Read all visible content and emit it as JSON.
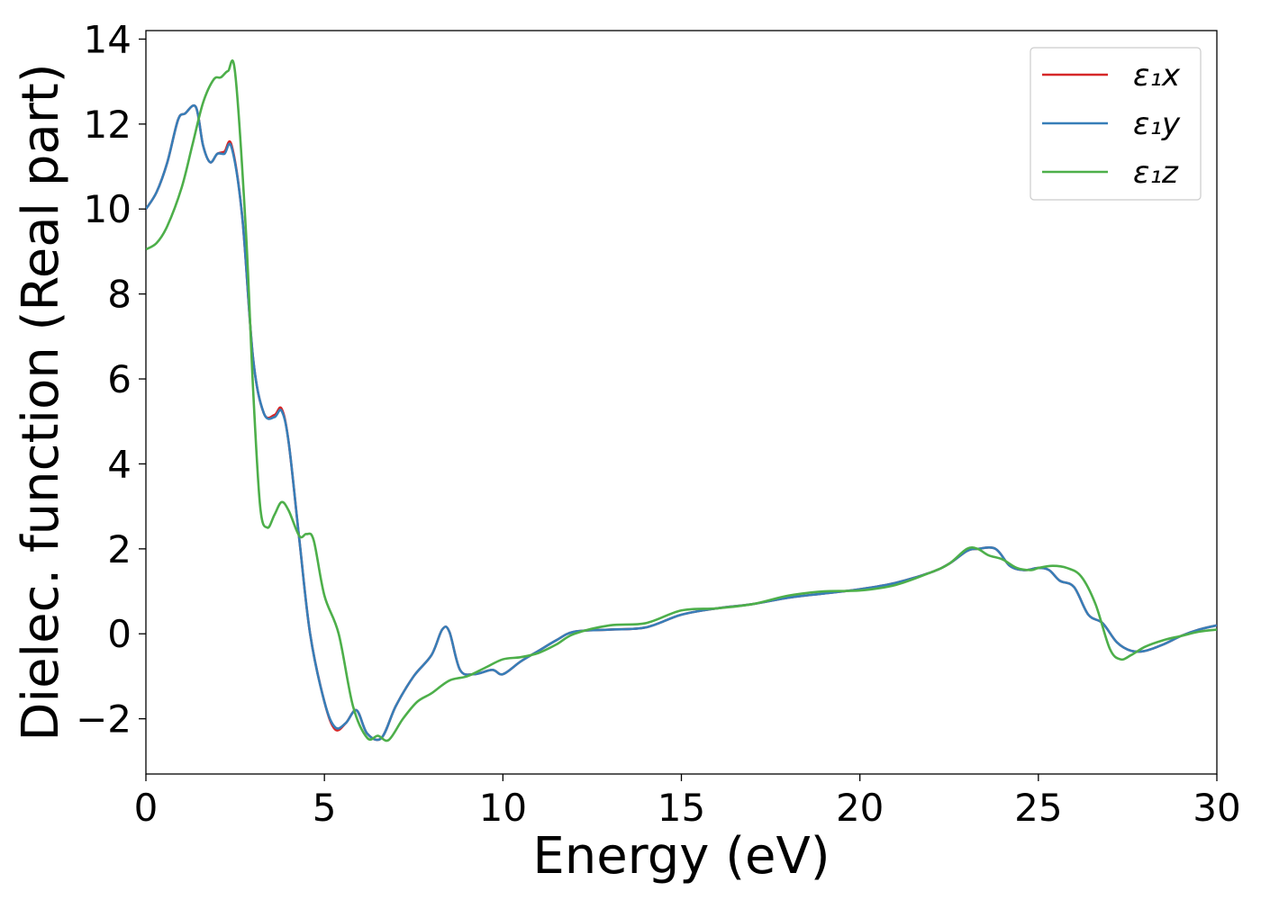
{
  "chart_data": {
    "type": "line",
    "title": "",
    "xlabel": "Energy (eV)",
    "ylabel": "Dielec. function (Real part)",
    "xlim": [
      0,
      30
    ],
    "ylim": [
      -3.3,
      14.2
    ],
    "xticks": [
      0,
      5,
      10,
      15,
      20,
      25,
      30
    ],
    "xtick_labels": [
      "0",
      "5",
      "10",
      "15",
      "20",
      "25",
      "30"
    ],
    "yticks": [
      -2,
      0,
      2,
      4,
      6,
      8,
      10,
      12,
      14
    ],
    "ytick_labels": [
      "−2",
      "0",
      "2",
      "4",
      "6",
      "8",
      "10",
      "12",
      "14"
    ],
    "grid": false,
    "legend_position": "top-right",
    "series": [
      {
        "name": "ε₁x",
        "color": "#d62728",
        "x": [
          0,
          0.3,
          0.6,
          0.9,
          1.1,
          1.4,
          1.6,
          1.8,
          2.0,
          2.2,
          2.4,
          2.7,
          3.0,
          3.3,
          3.6,
          3.8,
          4.0,
          4.3,
          4.6,
          5.0,
          5.3,
          5.6,
          5.9,
          6.2,
          6.6,
          7.0,
          7.5,
          8.0,
          8.3,
          8.5,
          8.8,
          9.2,
          9.7,
          10.0,
          10.5,
          11.0,
          11.5,
          12.0,
          13.0,
          14.0,
          15.0,
          16.0,
          17.0,
          18.0,
          19.0,
          20.0,
          21.0,
          22.0,
          22.5,
          23.0,
          23.3,
          23.8,
          24.2,
          24.6,
          25.0,
          25.3,
          25.6,
          26.0,
          26.4,
          26.8,
          27.2,
          27.6,
          28.0,
          28.5,
          29.0,
          29.5,
          30.0
        ],
        "y": [
          10.0,
          10.4,
          11.1,
          12.1,
          12.25,
          12.4,
          11.5,
          11.1,
          11.3,
          11.35,
          11.5,
          9.8,
          6.5,
          5.2,
          5.15,
          5.3,
          4.5,
          2.2,
          0.0,
          -1.6,
          -2.25,
          -2.1,
          -1.8,
          -2.35,
          -2.45,
          -1.7,
          -1.0,
          -0.5,
          0.1,
          0.05,
          -0.85,
          -0.95,
          -0.85,
          -0.95,
          -0.65,
          -0.4,
          -0.15,
          0.05,
          0.1,
          0.15,
          0.45,
          0.6,
          0.7,
          0.85,
          0.95,
          1.05,
          1.2,
          1.45,
          1.65,
          1.95,
          2.0,
          2.0,
          1.6,
          1.5,
          1.55,
          1.5,
          1.25,
          1.1,
          0.45,
          0.25,
          -0.2,
          -0.4,
          -0.4,
          -0.25,
          -0.05,
          0.1,
          0.2
        ]
      },
      {
        "name": "ε₁y",
        "color": "#377eb8",
        "x": [
          0,
          0.3,
          0.6,
          0.9,
          1.1,
          1.4,
          1.6,
          1.8,
          2.0,
          2.2,
          2.4,
          2.7,
          3.0,
          3.3,
          3.6,
          3.8,
          4.0,
          4.3,
          4.6,
          5.0,
          5.3,
          5.6,
          5.9,
          6.2,
          6.6,
          7.0,
          7.5,
          8.0,
          8.3,
          8.5,
          8.8,
          9.2,
          9.7,
          10.0,
          10.5,
          11.0,
          11.5,
          12.0,
          13.0,
          14.0,
          15.0,
          16.0,
          17.0,
          18.0,
          19.0,
          20.0,
          21.0,
          22.0,
          22.5,
          23.0,
          23.3,
          23.8,
          24.2,
          24.6,
          25.0,
          25.3,
          25.6,
          26.0,
          26.4,
          26.8,
          27.2,
          27.6,
          28.0,
          28.5,
          29.0,
          29.5,
          30.0
        ],
        "y": [
          10.0,
          10.4,
          11.1,
          12.1,
          12.25,
          12.4,
          11.5,
          11.1,
          11.3,
          11.3,
          11.45,
          9.8,
          6.5,
          5.2,
          5.1,
          5.25,
          4.5,
          2.2,
          0.0,
          -1.6,
          -2.2,
          -2.1,
          -1.8,
          -2.35,
          -2.45,
          -1.7,
          -1.0,
          -0.5,
          0.1,
          0.05,
          -0.85,
          -0.95,
          -0.85,
          -0.95,
          -0.65,
          -0.4,
          -0.15,
          0.05,
          0.1,
          0.15,
          0.45,
          0.6,
          0.7,
          0.85,
          0.95,
          1.05,
          1.2,
          1.45,
          1.65,
          1.95,
          2.0,
          2.0,
          1.6,
          1.5,
          1.55,
          1.5,
          1.25,
          1.1,
          0.45,
          0.25,
          -0.2,
          -0.4,
          -0.4,
          -0.25,
          -0.05,
          0.1,
          0.2
        ]
      },
      {
        "name": "ε₁z",
        "color": "#4daf4a",
        "x": [
          0,
          0.3,
          0.6,
          1.0,
          1.3,
          1.6,
          1.9,
          2.1,
          2.3,
          2.5,
          2.8,
          3.0,
          3.2,
          3.4,
          3.6,
          3.8,
          4.0,
          4.3,
          4.5,
          4.7,
          5.0,
          5.4,
          5.8,
          6.2,
          6.5,
          6.8,
          7.2,
          7.6,
          8.0,
          8.5,
          9.0,
          9.5,
          10.0,
          10.5,
          11.0,
          11.5,
          12.0,
          13.0,
          14.0,
          15.0,
          16.0,
          17.0,
          18.0,
          19.0,
          20.0,
          21.0,
          22.0,
          22.5,
          23.0,
          23.3,
          23.6,
          24.0,
          24.4,
          24.8,
          25.0,
          25.4,
          25.8,
          26.2,
          26.6,
          27.0,
          27.3,
          27.6,
          28.0,
          28.5,
          29.0,
          29.5,
          30.0
        ],
        "y": [
          9.05,
          9.2,
          9.6,
          10.5,
          11.5,
          12.5,
          13.05,
          13.1,
          13.25,
          13.2,
          9.5,
          5.8,
          3.0,
          2.5,
          2.8,
          3.1,
          2.9,
          2.3,
          2.35,
          2.2,
          0.9,
          0.0,
          -1.7,
          -2.45,
          -2.4,
          -2.5,
          -2.0,
          -1.6,
          -1.4,
          -1.1,
          -1.0,
          -0.8,
          -0.6,
          -0.55,
          -0.45,
          -0.25,
          0.0,
          0.2,
          0.25,
          0.55,
          0.6,
          0.7,
          0.9,
          1.0,
          1.02,
          1.15,
          1.45,
          1.65,
          2.0,
          2.0,
          1.85,
          1.75,
          1.55,
          1.5,
          1.55,
          1.6,
          1.55,
          1.35,
          0.7,
          -0.35,
          -0.6,
          -0.5,
          -0.3,
          -0.15,
          -0.05,
          0.05,
          0.1
        ]
      }
    ]
  }
}
